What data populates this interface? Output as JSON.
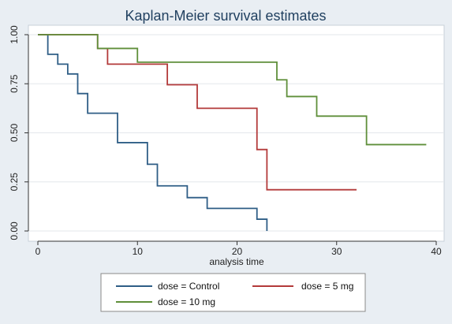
{
  "chart_data": {
    "type": "line",
    "step": true,
    "title": "Kaplan-Meier survival estimates",
    "xlabel": "analysis time",
    "ylabel": "",
    "xlim": [
      0,
      40
    ],
    "ylim": [
      0,
      1
    ],
    "xticks": [
      0,
      10,
      20,
      30,
      40
    ],
    "xtick_labels": [
      "0",
      "10",
      "20",
      "30",
      "40"
    ],
    "yticks": [
      0,
      0.25,
      0.5,
      0.75,
      1.0
    ],
    "ytick_labels": [
      "0.00",
      "0.25",
      "0.50",
      "0.75",
      "1.00"
    ],
    "grid": true,
    "legend_position": "bottom",
    "series": [
      {
        "name": "dose = Control",
        "color": "#2f5e86",
        "x": [
          0,
          1,
          2,
          3,
          4,
          5,
          8,
          11,
          12,
          15,
          17,
          22,
          23
        ],
        "y": [
          1.0,
          0.9,
          0.85,
          0.8,
          0.7,
          0.6,
          0.45,
          0.34,
          0.23,
          0.17,
          0.115,
          0.06,
          0.0
        ]
      },
      {
        "name": "dose = 5 mg",
        "color": "#b33a3a",
        "x": [
          0,
          6,
          7,
          13,
          16,
          22,
          23,
          32
        ],
        "y": [
          1.0,
          0.93,
          0.85,
          0.745,
          0.625,
          0.415,
          0.21,
          0.21
        ]
      },
      {
        "name": "dose = 10 mg",
        "color": "#5f8f3a",
        "x": [
          0,
          6,
          10,
          24,
          25,
          28,
          33,
          39
        ],
        "y": [
          1.0,
          0.93,
          0.86,
          0.77,
          0.685,
          0.585,
          0.44,
          0.44
        ]
      }
    ]
  }
}
